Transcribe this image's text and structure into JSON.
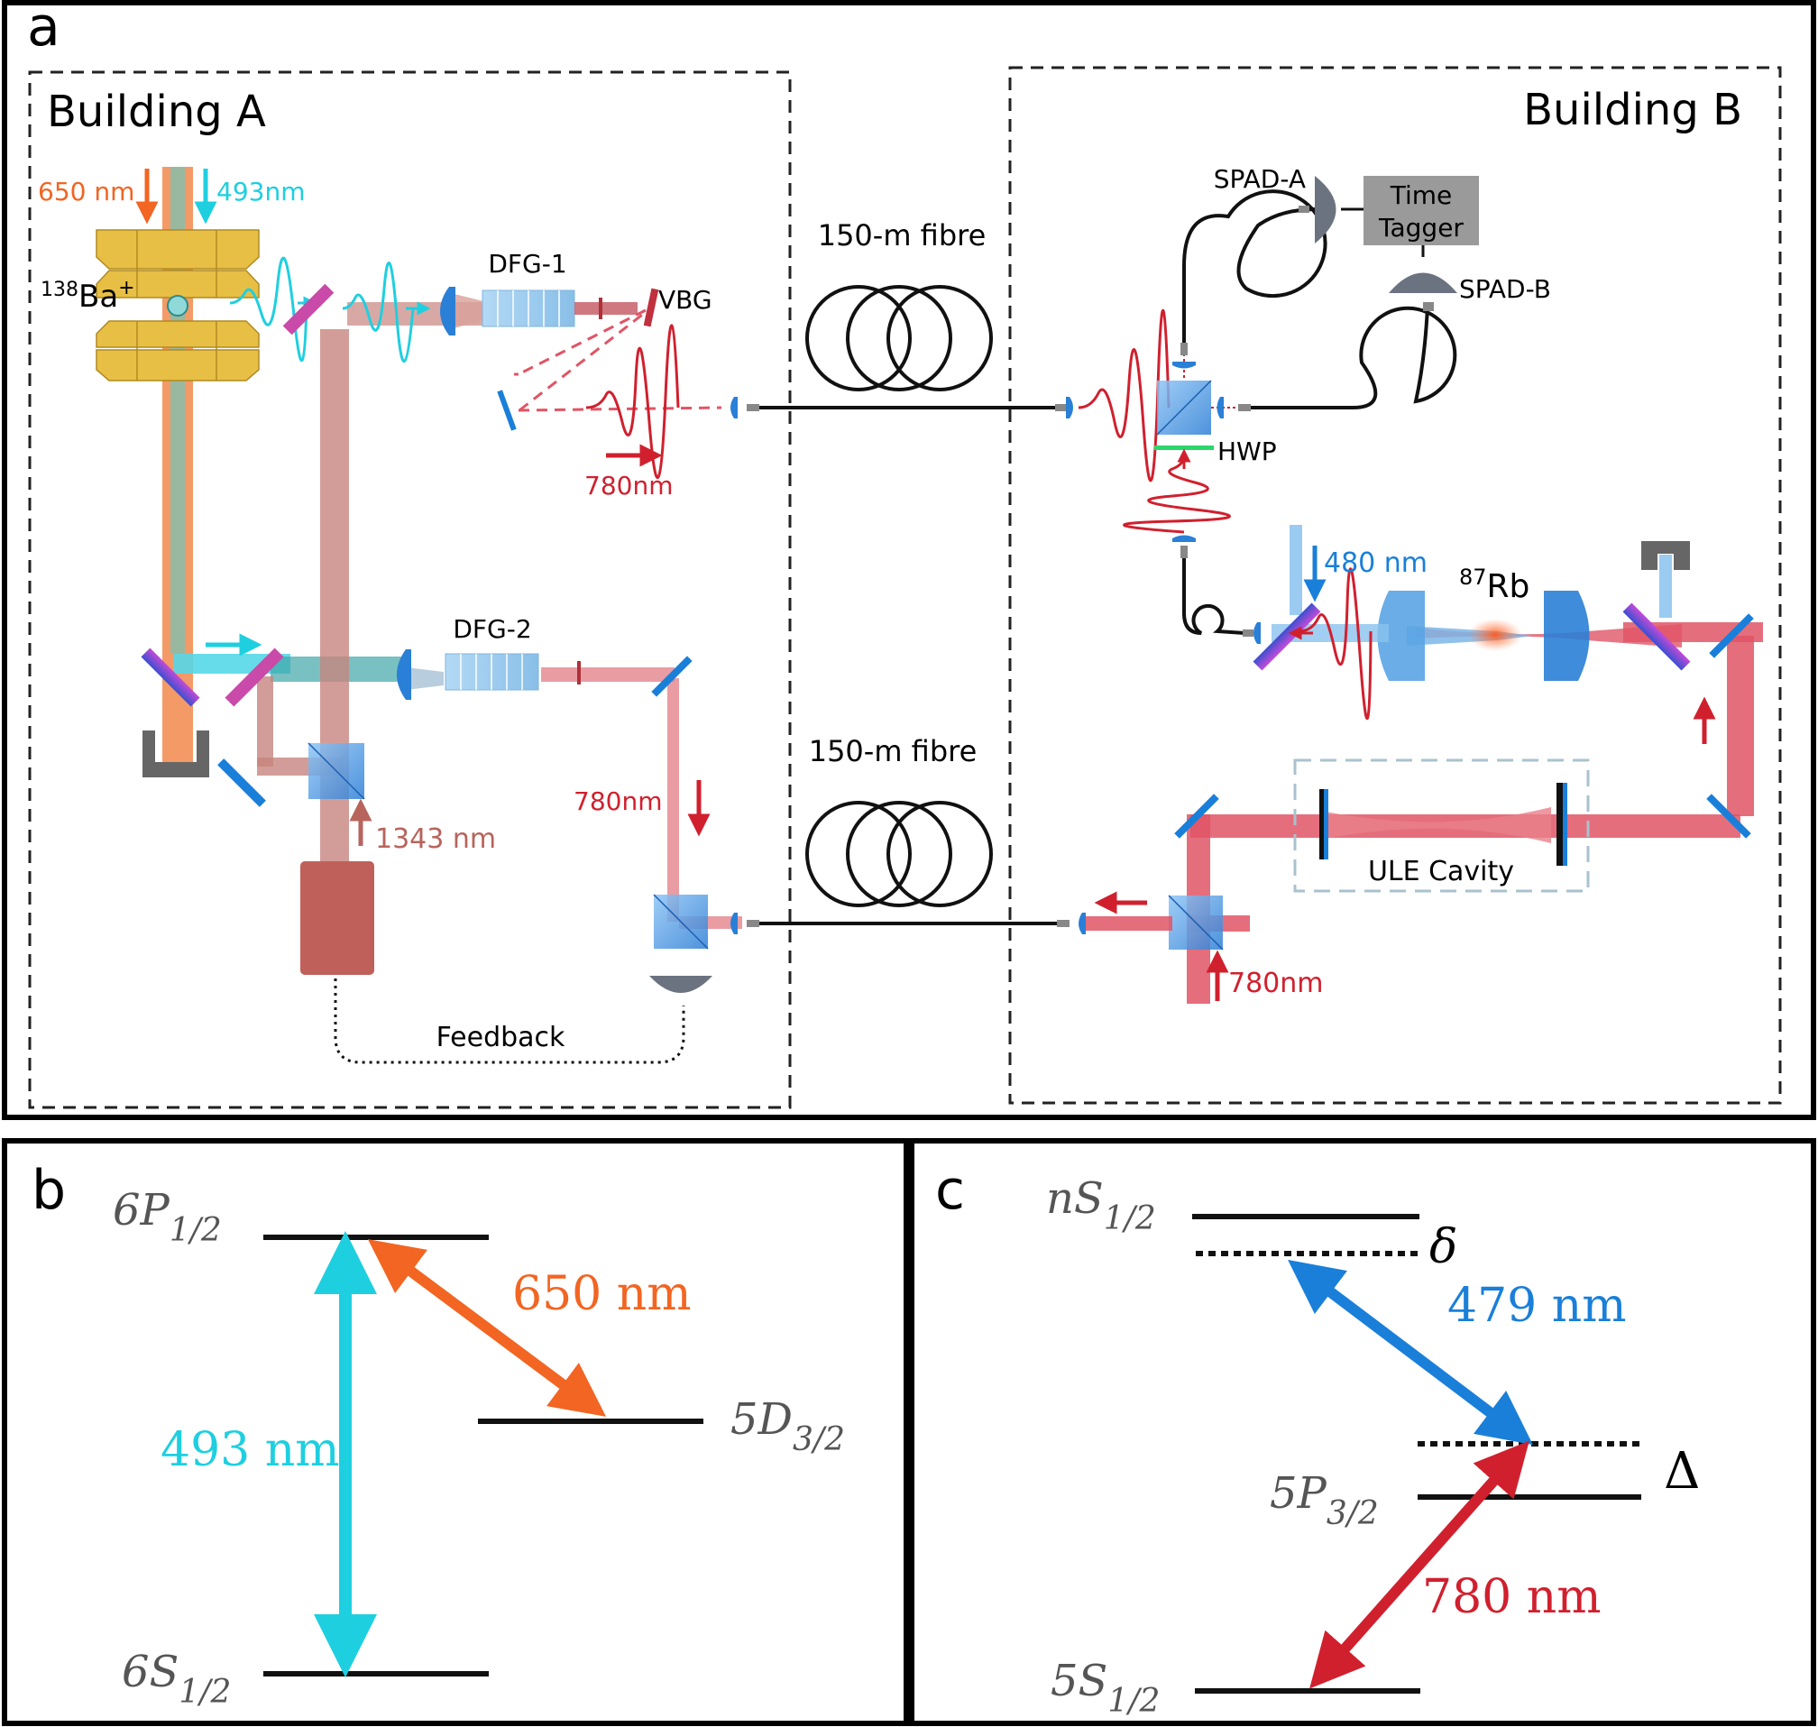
{
  "panel_a": {
    "letter": "a",
    "building_a": "Building A",
    "building_b": "Building B",
    "labels": {
      "wl_650": "650 nm",
      "wl_493": "493nm",
      "ion_mass": "138",
      "ion_symbol": "Ba",
      "ion_charge": "+",
      "dfg1": "DFG-1",
      "vbg": "VBG",
      "wl_780_top": "780nm",
      "dfg2": "DFG-2",
      "wl_1343": "1343 nm",
      "wl_780_mid": "780nm",
      "feedback": "Feedback",
      "fibre_top": "150-m fibre",
      "fibre_bottom": "150-m fibre",
      "spad_a": "SPAD-A",
      "spad_b": "SPAD-B",
      "time_tagger_1": "Time",
      "time_tagger_2": "Tagger",
      "hwp": "HWP",
      "wl_480": "480 nm",
      "rb_mass": "87",
      "rb_symbol": "Rb",
      "ule": "ULE Cavity",
      "wl_780_b": "780nm"
    }
  },
  "panel_b": {
    "letter": "b",
    "level_6p": {
      "base": "6P",
      "sub": "1/2"
    },
    "level_5d": {
      "base": "5D",
      "sub": "3/2"
    },
    "level_6s": {
      "base": "6S",
      "sub": "1/2"
    },
    "wl_493": "493 nm",
    "wl_650": "650 nm"
  },
  "panel_c": {
    "letter": "c",
    "level_ns": {
      "base": "nS",
      "sub": "1/2"
    },
    "level_5p": {
      "base": "5P",
      "sub": "3/2"
    },
    "level_5s": {
      "base": "5S",
      "sub": "1/2"
    },
    "delta_small": "δ",
    "delta_big": "Δ",
    "wl_479": "479 nm",
    "wl_780": "780 nm"
  },
  "colors": {
    "orange": "#f26522",
    "cyan": "#1ecfe0",
    "red": "#d0202e",
    "blue": "#1a7fd9",
    "brown": "#b7645c",
    "gold": "#e8bf45"
  }
}
